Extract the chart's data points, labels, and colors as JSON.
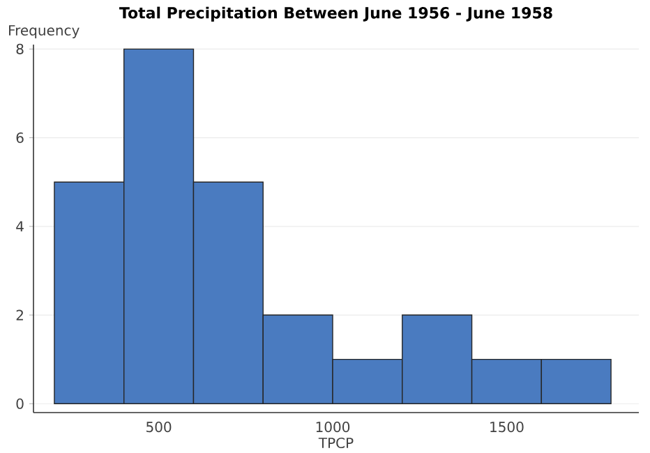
{
  "chart_data": {
    "type": "histogram",
    "title": "Total Precipitation Between June 1956 - June 1958",
    "xlabel": "TPCP",
    "ylabel": "Frequency",
    "bins": [
      200,
      400,
      600,
      800,
      1000,
      1200,
      1400,
      1600,
      1800
    ],
    "values": [
      5,
      8,
      5,
      2,
      1,
      2,
      1,
      1
    ],
    "color": "#4a7bc0",
    "xlim": [
      140,
      1880
    ],
    "ylim": [
      -0.2,
      8.1
    ],
    "xticks": [
      500,
      1000,
      1500
    ],
    "yticks": [
      0,
      2,
      4,
      6,
      8
    ],
    "grid": "y"
  }
}
